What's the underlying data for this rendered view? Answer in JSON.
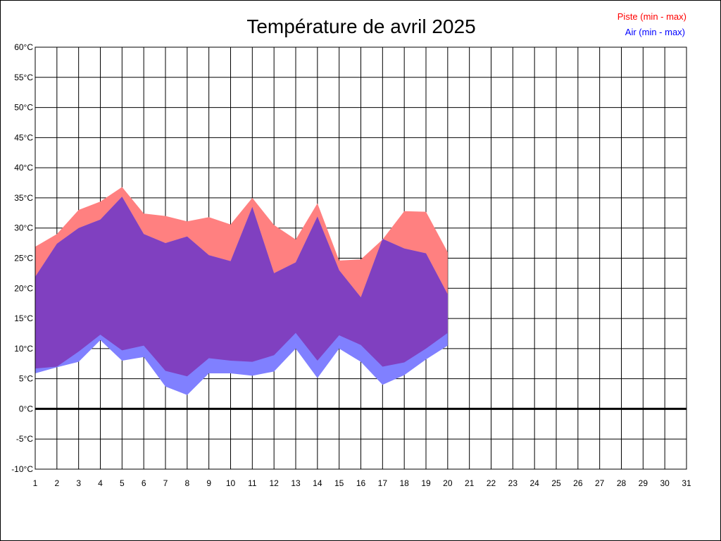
{
  "chart_data": {
    "type": "area",
    "title": "Température de avril 2025",
    "xlabel": "",
    "ylabel": "",
    "xlim": [
      1,
      31
    ],
    "ylim": [
      -10,
      60
    ],
    "grid": true,
    "legend_position": "top-right",
    "x_tick_labels": [
      "1",
      "2",
      "3",
      "4",
      "5",
      "6",
      "7",
      "8",
      "9",
      "10",
      "11",
      "12",
      "13",
      "14",
      "15",
      "16",
      "17",
      "18",
      "19",
      "20",
      "21",
      "22",
      "23",
      "24",
      "25",
      "26",
      "27",
      "28",
      "29",
      "30",
      "31"
    ],
    "y_tick_labels": [
      "60°C",
      "55°C",
      "50°C",
      "45°C",
      "40°C",
      "35°C",
      "30°C",
      "25°C",
      "20°C",
      "15°C",
      "10°C",
      "5°C",
      "0°C",
      "-5°C",
      "-10°C"
    ],
    "y_tick_values": [
      60,
      55,
      50,
      45,
      40,
      35,
      30,
      25,
      20,
      15,
      10,
      5,
      0,
      -5,
      -10
    ],
    "series": [
      {
        "name": "Piste (min - max)",
        "color": "#ff8080",
        "label_color": "#ff0000",
        "x": [
          1,
          2,
          3,
          4,
          5,
          6,
          7,
          8,
          9,
          10,
          11,
          12,
          13,
          14,
          15,
          16,
          17,
          18,
          19,
          20
        ],
        "min": [
          6.7,
          7.0,
          9.5,
          12.3,
          9.7,
          10.5,
          6.3,
          5.4,
          8.4,
          8.0,
          7.8,
          8.9,
          12.6,
          8.0,
          12.2,
          10.6,
          7.0,
          7.7,
          10.0,
          12.6
        ],
        "max": [
          26.9,
          29.0,
          33.0,
          34.4,
          36.8,
          32.4,
          32.0,
          31.1,
          31.8,
          30.6,
          35.0,
          30.5,
          28.1,
          34.1,
          24.6,
          24.8,
          28.1,
          32.8,
          32.7,
          26.0
        ]
      },
      {
        "name": "Air (min - max)",
        "color": "#8080ff",
        "label_color": "#0000ff",
        "x": [
          1,
          2,
          3,
          4,
          5,
          6,
          7,
          8,
          9,
          10,
          11,
          12,
          13,
          14,
          15,
          16,
          17,
          18,
          19,
          20
        ],
        "min": [
          5.9,
          6.9,
          7.8,
          11.4,
          8.0,
          8.6,
          3.7,
          2.3,
          5.9,
          5.9,
          5.5,
          6.2,
          10.0,
          5.1,
          10.0,
          7.8,
          4.0,
          5.6,
          8.2,
          10.5
        ],
        "max": [
          21.9,
          27.4,
          30.0,
          31.4,
          35.2,
          29.0,
          27.5,
          28.6,
          25.5,
          24.5,
          33.5,
          22.5,
          24.3,
          31.9,
          23.0,
          18.5,
          28.2,
          26.6,
          25.8,
          19.0
        ]
      }
    ],
    "overlap_color": "#8040c0"
  }
}
